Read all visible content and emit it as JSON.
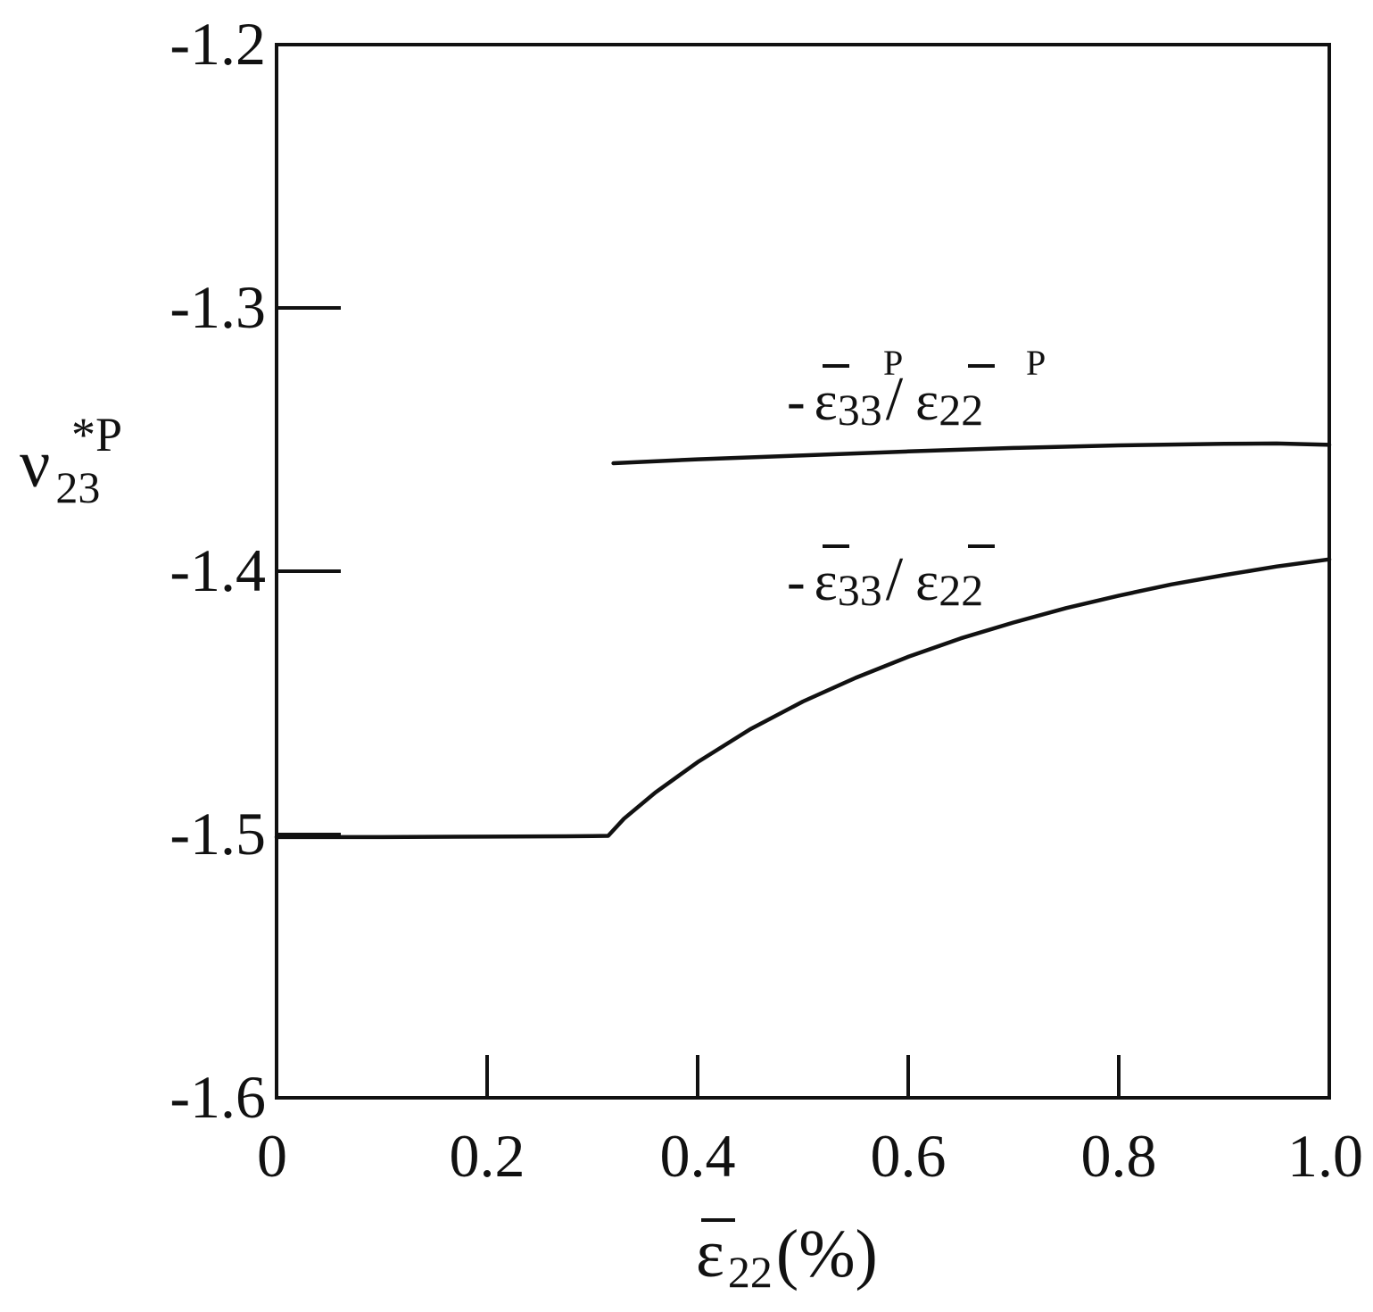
{
  "chart_data": {
    "type": "line",
    "xlabel": "ε̄22(%)",
    "xlabel_parts": {
      "symbol": "ε",
      "subscript": "22",
      "suffix": "(%)"
    },
    "ylabel": "ν*P23",
    "ylabel_parts": {
      "symbol": "ν",
      "subscript": "23",
      "superscript": "*P"
    },
    "xlim": [
      0,
      1.0
    ],
    "ylim": [
      -1.6,
      -1.2
    ],
    "x_ticks": [
      {
        "value": 0,
        "label": "0"
      },
      {
        "value": 0.2,
        "label": "0.2"
      },
      {
        "value": 0.4,
        "label": "0.4"
      },
      {
        "value": 0.6,
        "label": "0.6"
      },
      {
        "value": 0.8,
        "label": "0.8"
      },
      {
        "value": 1.0,
        "label": "1.0"
      }
    ],
    "y_ticks": [
      {
        "value": -1.2,
        "label": "-1.2"
      },
      {
        "value": -1.3,
        "label": "-1.3"
      },
      {
        "value": -1.4,
        "label": "-1.4"
      },
      {
        "value": -1.5,
        "label": "-1.5"
      },
      {
        "value": -1.6,
        "label": "-1.6"
      }
    ],
    "grid": false,
    "legend": "none",
    "series": [
      {
        "name": "-ε̄33P/ε̄22P",
        "label_parts": {
          "prefix": "-",
          "num_sub": "33",
          "num_sup": "P",
          "slash": "/",
          "den_sub": "22",
          "den_sup": "P"
        },
        "x": [
          0.32,
          0.4,
          0.5,
          0.6,
          0.7,
          0.8,
          0.9,
          0.95,
          1.0
        ],
        "y": [
          -1.359,
          -1.3575,
          -1.356,
          -1.3545,
          -1.3532,
          -1.3522,
          -1.3516,
          -1.3515,
          -1.352
        ]
      },
      {
        "name": "-ε̄33/ε̄22",
        "label_parts": {
          "prefix": "-",
          "num_sub": "33",
          "slash": "/",
          "den_sub": "22"
        },
        "x": [
          0,
          0.1,
          0.2,
          0.3,
          0.315,
          0.33,
          0.36,
          0.4,
          0.45,
          0.5,
          0.55,
          0.6,
          0.65,
          0.7,
          0.75,
          0.8,
          0.85,
          0.9,
          0.95,
          1.0
        ],
        "y": [
          -1.501,
          -1.501,
          -1.5008,
          -1.5006,
          -1.5005,
          -1.494,
          -1.484,
          -1.4725,
          -1.46,
          -1.4495,
          -1.4405,
          -1.4325,
          -1.4255,
          -1.4195,
          -1.414,
          -1.4093,
          -1.405,
          -1.4015,
          -1.3982,
          -1.3955
        ]
      }
    ]
  }
}
